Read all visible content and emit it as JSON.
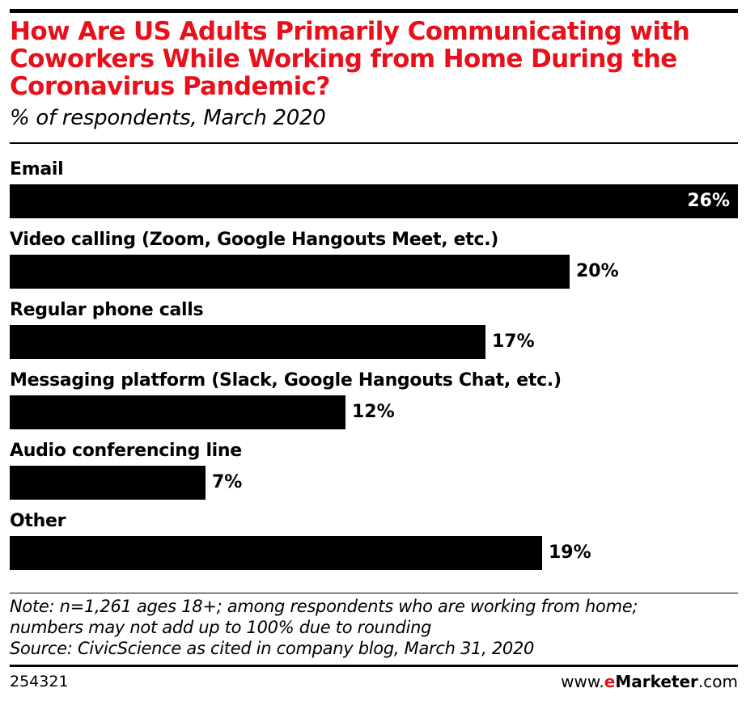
{
  "chart_data": {
    "type": "bar",
    "orientation": "horizontal",
    "title": "How Are US Adults Primarily Communicating with Coworkers While Working from Home During the Coronavirus Pandemic?",
    "subtitle": "% of respondents, March 2020",
    "categories": [
      "Email",
      "Video calling (Zoom, Google Hangouts Meet, etc.)",
      "Regular phone calls",
      "Messaging platform (Slack, Google Hangouts Chat, etc.)",
      "Audio conferencing line",
      "Other"
    ],
    "values": [
      26,
      20,
      17,
      12,
      7,
      19
    ],
    "value_labels": [
      "26%",
      "20%",
      "17%",
      "12%",
      "7%",
      "19%"
    ],
    "xlim": [
      0,
      26
    ],
    "grid": false,
    "bar_color": "#000000",
    "title_color": "#e8101a"
  },
  "notes": [
    "Note: n=1,261 ages 18+; among respondents who are working from home;",
    "numbers may not add up to 100% due to rounding",
    "Source: CivicScience as cited in company blog, March 31, 2020"
  ],
  "footer": {
    "chart_id": "254321",
    "brand_prefix": "www.",
    "brand_e": "e",
    "brand_name": "Marketer",
    "brand_suffix": ".com"
  }
}
